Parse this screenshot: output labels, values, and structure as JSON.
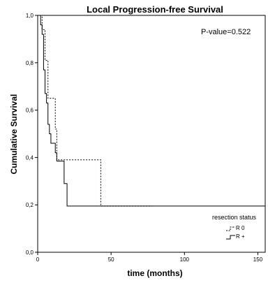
{
  "chart_data": {
    "type": "line",
    "title": "Local Progression-free Survival",
    "xlabel": "time (months)",
    "ylabel": "Cumulative Survival",
    "xlim": [
      0,
      155
    ],
    "ylim": [
      0,
      1.0
    ],
    "x_ticks": [
      0,
      50,
      100,
      150
    ],
    "x_tick_labels": [
      "0",
      "50",
      "100",
      "150"
    ],
    "y_ticks": [
      0,
      0.2,
      0.4,
      0.6,
      0.8,
      1.0
    ],
    "y_tick_labels": [
      "0,0",
      "0,2",
      "0,4",
      "0,6",
      "0,8",
      "1,0"
    ],
    "annotation": "P-value=0.522",
    "legend": {
      "title": "resection status",
      "position": "bottom-right",
      "entries": [
        {
          "label": "R 0",
          "style": "dashed"
        },
        {
          "label": "R +",
          "style": "solid"
        }
      ]
    },
    "series": [
      {
        "name": "R 0",
        "style": "dashed",
        "color": "#000000",
        "steps": [
          {
            "x": 0,
            "y": 1.0
          },
          {
            "x": 3,
            "y": 0.94
          },
          {
            "x": 5,
            "y": 0.81
          },
          {
            "x": 7,
            "y": 0.65
          },
          {
            "x": 12,
            "y": 0.52
          },
          {
            "x": 13,
            "y": 0.39
          },
          {
            "x": 43,
            "y": 0.195
          },
          {
            "x": 78,
            "y": 0.195
          }
        ]
      },
      {
        "name": "R +",
        "style": "solid",
        "color": "#000000",
        "steps": [
          {
            "x": 0,
            "y": 1.0
          },
          {
            "x": 2,
            "y": 0.96
          },
          {
            "x": 3,
            "y": 0.92
          },
          {
            "x": 4,
            "y": 0.77
          },
          {
            "x": 5,
            "y": 0.67
          },
          {
            "x": 6,
            "y": 0.63
          },
          {
            "x": 7,
            "y": 0.54
          },
          {
            "x": 8,
            "y": 0.5
          },
          {
            "x": 9,
            "y": 0.46
          },
          {
            "x": 12,
            "y": 0.42
          },
          {
            "x": 13,
            "y": 0.385
          },
          {
            "x": 18,
            "y": 0.29
          },
          {
            "x": 20,
            "y": 0.195
          },
          {
            "x": 155,
            "y": 0.195
          }
        ]
      }
    ]
  }
}
